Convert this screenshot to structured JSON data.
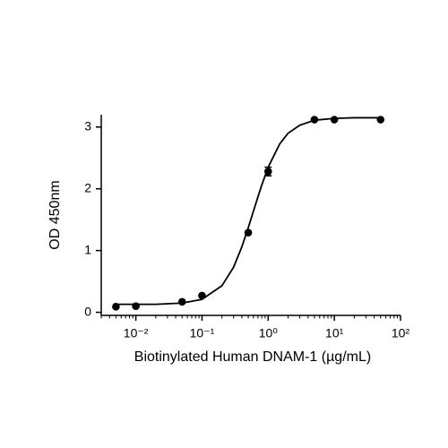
{
  "chart_data": {
    "type": "scatter",
    "x_label": "Biotinylated Human DNAM-1 (µg/mL)",
    "y_label": "OD 450nm",
    "xscale": "log",
    "xlim": [
      0.003,
      100
    ],
    "ylim": [
      -0.05,
      3.2
    ],
    "xticks": [
      {
        "value": 0.01,
        "label": "10⁻²"
      },
      {
        "value": 0.1,
        "label": "10⁻¹"
      },
      {
        "value": 1,
        "label": "10⁰"
      },
      {
        "value": 10,
        "label": "10¹"
      },
      {
        "value": 100,
        "label": "10²"
      }
    ],
    "yticks": [
      0,
      1,
      2,
      3
    ],
    "grid": false,
    "series": [
      {
        "type": "scatter",
        "color": "#000000",
        "x": [
          0.005,
          0.01,
          0.05,
          0.1,
          0.5,
          1,
          5,
          10,
          50
        ],
        "values": [
          0.09,
          0.1,
          0.17,
          0.27,
          1.29,
          2.28,
          3.12,
          3.12,
          3.12
        ],
        "errors": [
          null,
          null,
          null,
          null,
          null,
          0.07,
          null,
          null,
          null
        ]
      },
      {
        "type": "line",
        "color": "#000000",
        "x": [
          0.005,
          0.01,
          0.02,
          0.05,
          0.1,
          0.2,
          0.3,
          0.4,
          0.5,
          0.6,
          0.7,
          0.8,
          1,
          1.5,
          2,
          3,
          5,
          10,
          20,
          50
        ],
        "values": [
          0.13,
          0.13,
          0.13,
          0.15,
          0.21,
          0.43,
          0.73,
          1.06,
          1.37,
          1.64,
          1.87,
          2.06,
          2.35,
          2.73,
          2.9,
          3.03,
          3.11,
          3.14,
          3.15,
          3.15
        ]
      }
    ]
  }
}
